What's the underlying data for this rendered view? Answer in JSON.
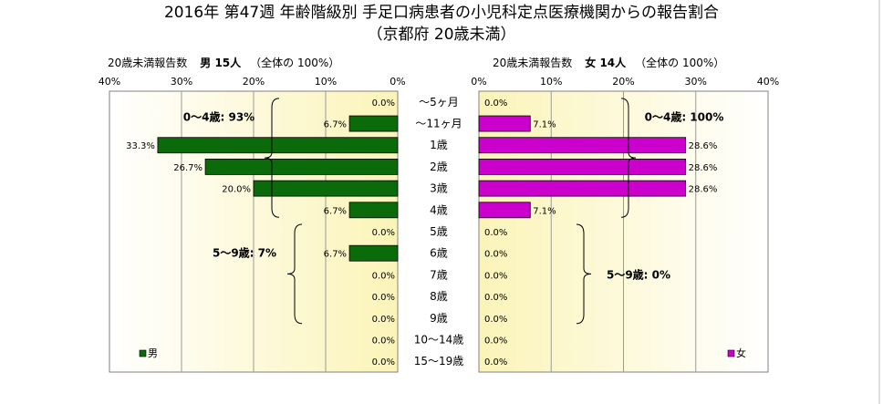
{
  "title_line1": "2016年 第47週 年齢階級別 手足口病患者の小児科定点医療機関からの報告割合",
  "title_line2": "（京都府 20歳未満）",
  "male": {
    "header_label": "20歳未満報告数",
    "header_sex": "男 15人",
    "header_paren": "（全体の 100%）",
    "legend": "男",
    "bracket1": "0～4歳: 93%",
    "bracket2": "5～9歳: 7%",
    "color": "#0b6b0b"
  },
  "female": {
    "header_label": "20歳未満報告数",
    "header_sex": "女 14人",
    "header_paren": "（全体の 100%）",
    "legend": "女",
    "bracket1": "0～4歳: 100%",
    "bracket2": "5～9歳: 0%",
    "color": "#cc00cc"
  },
  "chart_data": {
    "type": "bar",
    "categories": [
      "～5ヶ月",
      "～11ヶ月",
      "1歳",
      "2歳",
      "3歳",
      "4歳",
      "5歳",
      "6歳",
      "7歳",
      "8歳",
      "9歳",
      "10～14歳",
      "15～19歳"
    ],
    "series": [
      {
        "name": "男",
        "values": [
          0.0,
          6.7,
          33.3,
          26.7,
          20.0,
          6.7,
          0.0,
          6.7,
          0.0,
          0.0,
          0.0,
          0.0,
          0.0
        ],
        "labels": [
          "0.0%",
          "6.7%",
          "33.3%",
          "26.7%",
          "20.0%",
          "6.7%",
          "0.0%",
          "6.7%",
          "0.0%",
          "0.0%",
          "0.0%",
          "0.0%",
          "0.0%"
        ]
      },
      {
        "name": "女",
        "values": [
          0.0,
          7.1,
          28.6,
          28.6,
          28.6,
          7.1,
          0.0,
          0.0,
          0.0,
          0.0,
          0.0,
          0.0,
          0.0
        ],
        "labels": [
          "0.0%",
          "7.1%",
          "28.6%",
          "28.6%",
          "28.6%",
          "7.1%",
          "0.0%",
          "0.0%",
          "0.0%",
          "0.0%",
          "0.0%",
          "0.0%",
          "0.0%"
        ]
      }
    ],
    "xlim": [
      0,
      40
    ],
    "ticks": [
      0,
      10,
      20,
      30,
      40
    ],
    "tick_labels_male": [
      "0%",
      "10%",
      "20%",
      "30%",
      "40%"
    ],
    "tick_labels_female": [
      "0%",
      "10%",
      "20%",
      "30%",
      "40%"
    ],
    "grid": true
  }
}
